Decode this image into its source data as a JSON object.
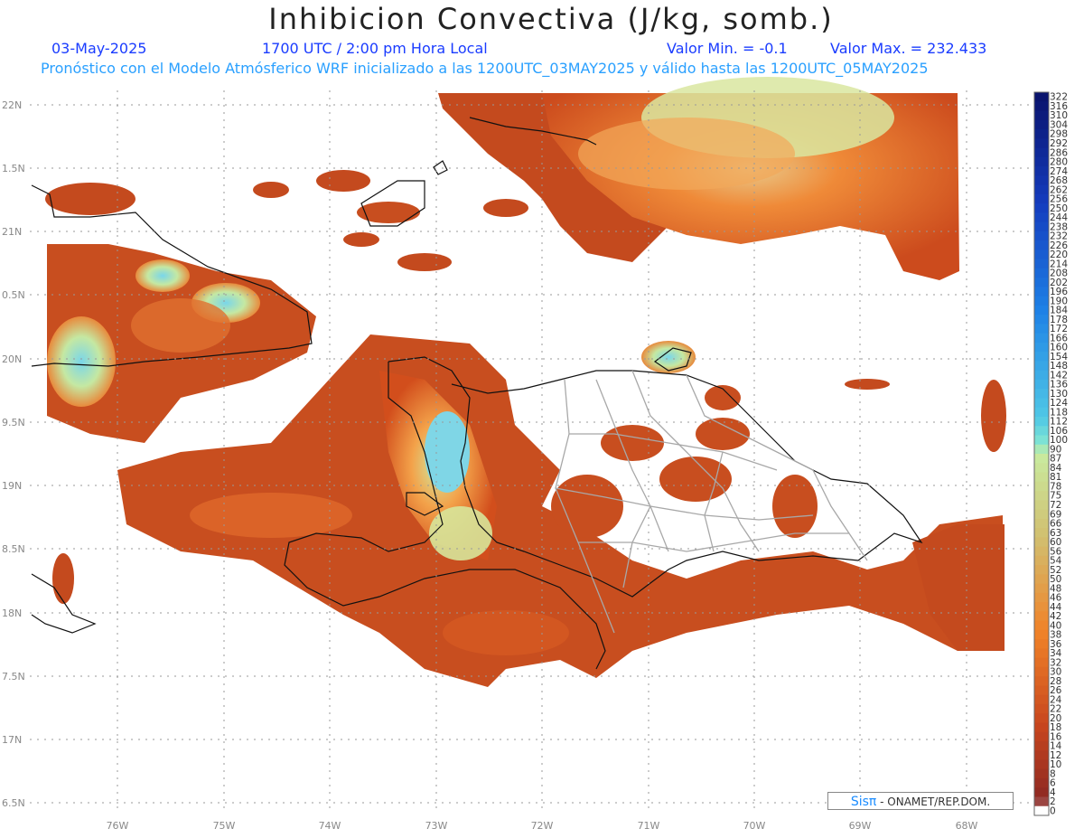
{
  "title": "Inhibicion Convectiva (J/kg, somb.)",
  "date": "03-May-2025",
  "time": "1700 UTC / 2:00 pm Hora Local",
  "min_label": "Valor Min. = -0.1",
  "max_label": "Valor Max. = 232.433",
  "forecast_line": "Pronóstico con el Modelo Atmósferico WRF inicializado a las 1200UTC_03MAY2025 y válido hasta las  1200UTC_05MAY2025",
  "lat_labels": [
    "22N",
    "1.5N",
    "21N",
    "0.5N",
    "20N",
    "9.5N",
    "19N",
    "8.5N",
    "18N",
    "7.5N",
    "17N",
    "6.5N"
  ],
  "lon_labels": [
    "76W",
    "75W",
    "74W",
    "73W",
    "72W",
    "71W",
    "70W",
    "69W",
    "68W"
  ],
  "colorbar_labels": [
    "322",
    "316",
    "310",
    "304",
    "298",
    "292",
    "286",
    "280",
    "274",
    "268",
    "262",
    "256",
    "250",
    "244",
    "238",
    "232",
    "226",
    "220",
    "214",
    "208",
    "202",
    "196",
    "190",
    "184",
    "178",
    "172",
    "166",
    "160",
    "154",
    "148",
    "142",
    "136",
    "130",
    "124",
    "118",
    "112",
    "106",
    "100",
    "90",
    "87",
    "84",
    "81",
    "78",
    "75",
    "72",
    "69",
    "66",
    "63",
    "60",
    "56",
    "54",
    "52",
    "50",
    "48",
    "46",
    "44",
    "42",
    "40",
    "38",
    "36",
    "34",
    "32",
    "30",
    "28",
    "26",
    "24",
    "22",
    "20",
    "18",
    "16",
    "14",
    "12",
    "10",
    "8",
    "6",
    "4",
    "2",
    "0"
  ],
  "credit_sis": "Sisπ",
  "credit_org": " - ONAMET/REP.DOM.",
  "colors": {
    "land_low": "#9a3223",
    "land_mid": "#d5521e",
    "land_high": "#f09040",
    "peak": "#c8e89a",
    "peak_blue": "#7fd8e8",
    "coast": "#111111",
    "border": "#a0a0a0"
  }
}
